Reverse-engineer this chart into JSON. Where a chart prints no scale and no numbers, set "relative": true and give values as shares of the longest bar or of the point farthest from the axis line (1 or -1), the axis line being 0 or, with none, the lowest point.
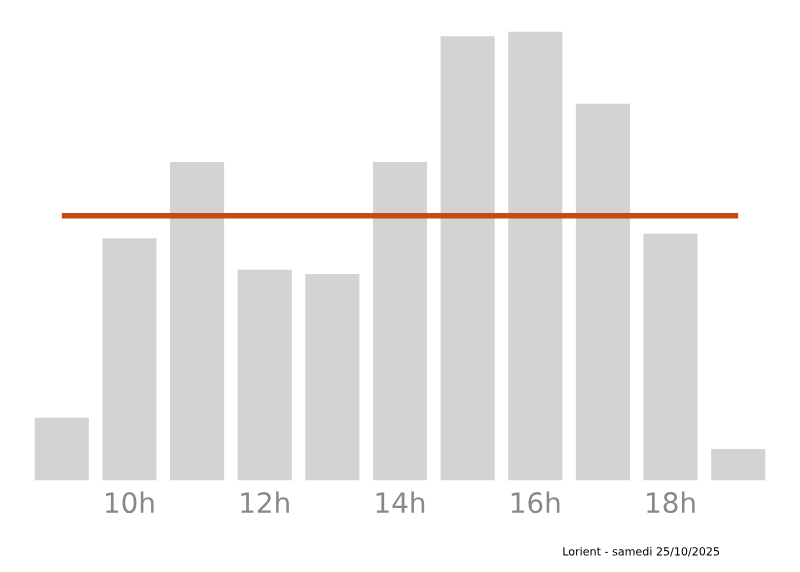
{
  "chart_data": {
    "type": "bar",
    "relative": true,
    "categories": [
      null,
      "10h",
      null,
      "12h",
      null,
      "14h",
      null,
      "16h",
      null,
      "18h",
      null
    ],
    "values": [
      0.14,
      0.54,
      0.71,
      0.47,
      0.46,
      0.71,
      0.99,
      1,
      0.84,
      0.55,
      0.07
    ],
    "color": "#d3d3d3",
    "ref_lines": [
      {
        "axis": "y",
        "value": 0.59,
        "color": "#c94a14"
      }
    ],
    "annotations": [
      "Lorient - samedi 25/10/2025"
    ],
    "grid": false,
    "legend": false
  }
}
